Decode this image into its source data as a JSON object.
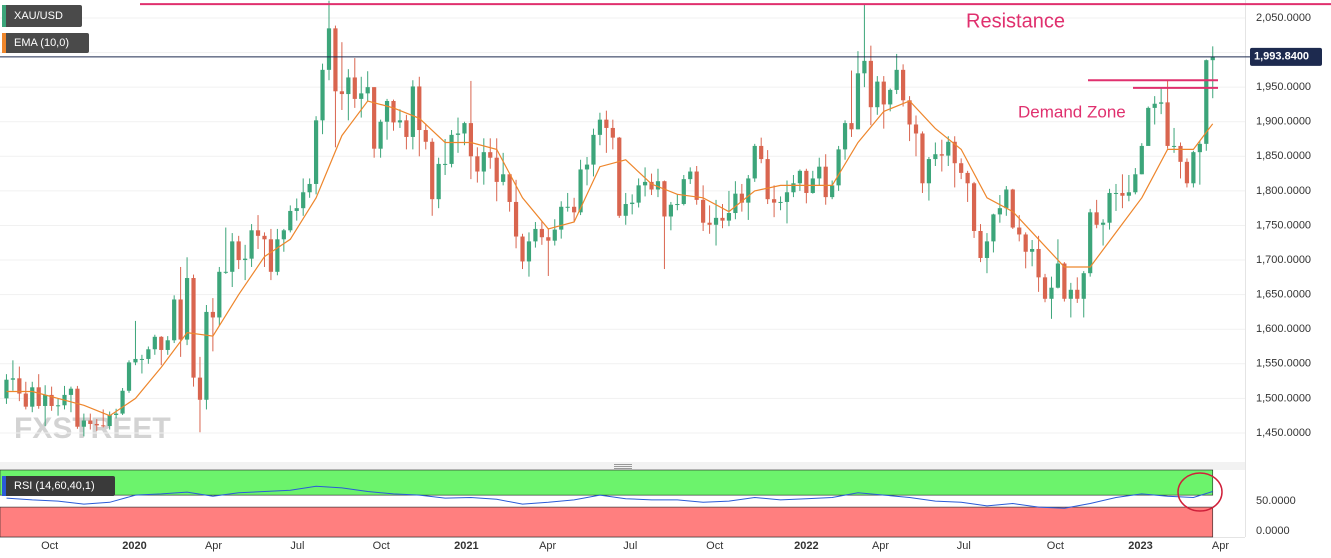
{
  "chart_data": {
    "type": "candlestick",
    "title": "XAU/USD",
    "watermark": "FXSTREET",
    "up_color": "#3ca57a",
    "down_color": "#d9654f",
    "grid": true,
    "open": [
      1500,
      1527,
      1529,
      1507,
      1488,
      1516,
      1489,
      1505,
      1489,
      1490,
      1505,
      1514,
      1459,
      1468,
      1463,
      1461,
      1460,
      1476,
      1478,
      1511,
      1552,
      1557,
      1557,
      1571,
      1589,
      1570,
      1584,
      1643,
      1585,
      1674,
      1530,
      1498,
      1625,
      1617,
      1683,
      1683,
      1727,
      1700,
      1702,
      1743,
      1735,
      1730,
      1683,
      1730,
      1743,
      1771,
      1775,
      1798,
      1810,
      1902,
      1975,
      2035,
      1944,
      1940,
      1964,
      1933,
      1941,
      1950,
      1861,
      1900,
      1930,
      1899,
      1902,
      1878,
      1951,
      1888,
      1871,
      1788,
      1839,
      1839,
      1881,
      1883,
      1898,
      1850,
      1828,
      1856,
      1848,
      1813,
      1824,
      1784,
      1734,
      1698,
      1727,
      1745,
      1733,
      1728,
      1744,
      1777,
      1777,
      1769,
      1831,
      1838,
      1881,
      1903,
      1891,
      1877,
      1764,
      1781,
      1783,
      1808,
      1813,
      1802,
      1814,
      1763,
      1780,
      1781,
      1817,
      1828,
      1787,
      1754,
      1751,
      1761,
      1757,
      1768,
      1796,
      1783,
      1818,
      1865,
      1846,
      1788,
      1783,
      1784,
      1798,
      1811,
      1829,
      1797,
      1818,
      1835,
      1791,
      1808,
      1860,
      1898,
      1889,
      1970,
      1988,
      1921,
      1958,
      1925,
      1946,
      1975,
      1931,
      1896,
      1883,
      1811,
      1846,
      1853,
      1851,
      1871,
      1840,
      1826,
      1811,
      1742,
      1703,
      1727,
      1766,
      1775,
      1802,
      1747,
      1737,
      1712,
      1716,
      1675,
      1644,
      1660,
      1695,
      1644,
      1657,
      1644,
      1681,
      1769,
      1751,
      1754,
      1797,
      1797,
      1793,
      1798,
      1824,
      1865,
      1920,
      1926,
      1928,
      1865,
      1865,
      1842,
      1811,
      1856,
      1868,
      1989
    ],
    "high": [
      1535,
      1555,
      1546,
      1524,
      1524,
      1535,
      1519,
      1517,
      1500,
      1518,
      1517,
      1518,
      1478,
      1478,
      1470,
      1484,
      1481,
      1485,
      1515,
      1555,
      1612,
      1563,
      1575,
      1592,
      1590,
      1590,
      1649,
      1690,
      1704,
      1679,
      1560,
      1635,
      1645,
      1690,
      1747,
      1739,
      1735,
      1722,
      1752,
      1765,
      1740,
      1745,
      1745,
      1745,
      1779,
      1789,
      1818,
      1818,
      1908,
      1984,
      2075,
      2039,
      2015,
      1976,
      1992,
      1965,
      1973,
      1950,
      1903,
      1933,
      1932,
      1918,
      1910,
      1960,
      1965,
      1897,
      1876,
      1848,
      1875,
      1888,
      1906,
      1900,
      1959,
      1863,
      1876,
      1876,
      1876,
      1855,
      1824,
      1816,
      1738,
      1740,
      1755,
      1756,
      1746,
      1759,
      1785,
      1797,
      1790,
      1845,
      1849,
      1890,
      1913,
      1916,
      1903,
      1878,
      1797,
      1795,
      1818,
      1834,
      1825,
      1832,
      1815,
      1784,
      1795,
      1823,
      1834,
      1836,
      1808,
      1779,
      1787,
      1781,
      1800,
      1814,
      1810,
      1823,
      1868,
      1877,
      1859,
      1808,
      1792,
      1815,
      1823,
      1831,
      1832,
      1829,
      1848,
      1853,
      1815,
      1865,
      1902,
      1974,
      2002,
      2070,
      2010,
      1966,
      1966,
      1948,
      1998,
      1983,
      1937,
      1909,
      1886,
      1849,
      1870,
      1874,
      1879,
      1879,
      1847,
      1829,
      1813,
      1752,
      1739,
      1767,
      1794,
      1807,
      1803,
      1765,
      1740,
      1729,
      1735,
      1680,
      1676,
      1730,
      1697,
      1667,
      1675,
      1684,
      1774,
      1787,
      1759,
      1803,
      1810,
      1824,
      1823,
      1833,
      1869,
      1922,
      1937,
      1949,
      1960,
      1891,
      1870,
      1847,
      1858,
      1872,
      1990,
      2009
    ],
    "low": [
      1492,
      1511,
      1496,
      1484,
      1480,
      1485,
      1460,
      1482,
      1475,
      1484,
      1480,
      1456,
      1445,
      1455,
      1453,
      1458,
      1455,
      1471,
      1476,
      1508,
      1548,
      1536,
      1550,
      1563,
      1548,
      1563,
      1580,
      1560,
      1577,
      1517,
      1451,
      1484,
      1568,
      1605,
      1680,
      1661,
      1687,
      1671,
      1690,
      1716,
      1690,
      1671,
      1678,
      1712,
      1740,
      1757,
      1764,
      1790,
      1795,
      1882,
      1960,
      1863,
      1917,
      1902,
      1920,
      1906,
      1930,
      1848,
      1848,
      1874,
      1887,
      1891,
      1860,
      1860,
      1850,
      1860,
      1764,
      1775,
      1823,
      1834,
      1855,
      1866,
      1817,
      1812,
      1809,
      1832,
      1785,
      1808,
      1770,
      1717,
      1687,
      1676,
      1718,
      1722,
      1677,
      1721,
      1731,
      1770,
      1756,
      1765,
      1808,
      1821,
      1866,
      1855,
      1860,
      1761,
      1751,
      1766,
      1776,
      1792,
      1794,
      1791,
      1687,
      1743,
      1772,
      1779,
      1810,
      1780,
      1742,
      1738,
      1721,
      1746,
      1749,
      1759,
      1770,
      1758,
      1813,
      1840,
      1781,
      1762,
      1772,
      1753,
      1791,
      1800,
      1782,
      1796,
      1808,
      1780,
      1788,
      1800,
      1845,
      1878,
      1889,
      1950,
      1895,
      1910,
      1890,
      1915,
      1940,
      1922,
      1872,
      1850,
      1797,
      1786,
      1836,
      1828,
      1836,
      1805,
      1817,
      1784,
      1732,
      1697,
      1681,
      1711,
      1754,
      1764,
      1745,
      1727,
      1688,
      1691,
      1654,
      1639,
      1615,
      1659,
      1640,
      1617,
      1638,
      1617,
      1676,
      1746,
      1721,
      1744,
      1771,
      1775,
      1785,
      1795,
      1824,
      1867,
      1896,
      1911,
      1861,
      1855,
      1818,
      1805,
      1805,
      1809,
      1858,
      1934
    ],
    "close": [
      1527,
      1529,
      1507,
      1488,
      1516,
      1489,
      1505,
      1489,
      1490,
      1505,
      1514,
      1459,
      1468,
      1463,
      1461,
      1460,
      1476,
      1478,
      1511,
      1552,
      1557,
      1557,
      1571,
      1589,
      1570,
      1584,
      1643,
      1585,
      1674,
      1530,
      1498,
      1625,
      1617,
      1683,
      1683,
      1727,
      1700,
      1702,
      1743,
      1735,
      1730,
      1683,
      1730,
      1743,
      1771,
      1775,
      1798,
      1810,
      1902,
      1975,
      2035,
      1944,
      1940,
      1964,
      1933,
      1941,
      1950,
      1861,
      1900,
      1930,
      1899,
      1902,
      1878,
      1951,
      1888,
      1871,
      1788,
      1839,
      1839,
      1881,
      1883,
      1898,
      1850,
      1828,
      1856,
      1848,
      1813,
      1824,
      1784,
      1734,
      1698,
      1727,
      1745,
      1733,
      1728,
      1744,
      1777,
      1777,
      1769,
      1831,
      1838,
      1881,
      1903,
      1891,
      1877,
      1764,
      1781,
      1783,
      1808,
      1813,
      1802,
      1814,
      1763,
      1780,
      1781,
      1817,
      1828,
      1787,
      1754,
      1751,
      1761,
      1757,
      1768,
      1796,
      1783,
      1818,
      1865,
      1846,
      1788,
      1783,
      1784,
      1798,
      1811,
      1829,
      1797,
      1818,
      1835,
      1791,
      1808,
      1860,
      1898,
      1889,
      1970,
      1988,
      1921,
      1958,
      1925,
      1946,
      1975,
      1931,
      1896,
      1883,
      1811,
      1846,
      1853,
      1851,
      1871,
      1840,
      1826,
      1811,
      1742,
      1703,
      1727,
      1766,
      1775,
      1802,
      1747,
      1737,
      1712,
      1716,
      1675,
      1644,
      1660,
      1695,
      1644,
      1657,
      1644,
      1681,
      1769,
      1751,
      1754,
      1797,
      1797,
      1793,
      1798,
      1824,
      1865,
      1920,
      1926,
      1928,
      1865,
      1865,
      1842,
      1811,
      1856,
      1868,
      1989,
      1994
    ],
    "xlim": [
      -1,
      192
    ],
    "xticks": [
      {
        "value": 6.7,
        "label": "Oct"
      },
      {
        "value": 19.85,
        "label": "2020"
      },
      {
        "value": 32.1,
        "label": "Apr"
      },
      {
        "value": 45.1,
        "label": "Jul"
      },
      {
        "value": 58.1,
        "label": "Oct"
      },
      {
        "value": 71.3,
        "label": "2021"
      },
      {
        "value": 83.9,
        "label": "Apr"
      },
      {
        "value": 96.7,
        "label": "Jul"
      },
      {
        "value": 109.8,
        "label": "Oct"
      },
      {
        "value": 124,
        "label": "2022"
      },
      {
        "value": 135.5,
        "label": "Apr"
      },
      {
        "value": 148.4,
        "label": "Jul"
      },
      {
        "value": 162.6,
        "label": "Oct"
      },
      {
        "value": 175.8,
        "label": "2023"
      },
      {
        "value": 188.2,
        "label": "Apr"
      }
    ],
    "ylim": [
      1408,
      2076
    ],
    "yticks": [
      {
        "value": 1450,
        "label": "1,450.0000"
      },
      {
        "value": 1500,
        "label": "1,500.0000"
      },
      {
        "value": 1550,
        "label": "1,550.0000"
      },
      {
        "value": 1600,
        "label": "1,600.0000"
      },
      {
        "value": 1650,
        "label": "1,650.0000"
      },
      {
        "value": 1700,
        "label": "1,700.0000"
      },
      {
        "value": 1750,
        "label": "1,750.0000"
      },
      {
        "value": 1800,
        "label": "1,800.0000"
      },
      {
        "value": 1850,
        "label": "1,850.0000"
      },
      {
        "value": 1900,
        "label": "1,900.0000"
      },
      {
        "value": 1950,
        "label": "1,950.0000"
      },
      {
        "value": 2000,
        "label": "2,000.0000"
      },
      {
        "value": 2050,
        "label": "2,050.0000"
      }
    ],
    "ema": {
      "name": "EMA (10,0)",
      "color": "#ee862c",
      "x": [
        0,
        4,
        8,
        12,
        16,
        20,
        24,
        28,
        32,
        36,
        40,
        44,
        48,
        52,
        56,
        60,
        64,
        68,
        72,
        76,
        80,
        84,
        88,
        92,
        96,
        100,
        104,
        108,
        112,
        116,
        120,
        124,
        128,
        132,
        136,
        140,
        144,
        148,
        152,
        156,
        160,
        164,
        168,
        172,
        176,
        180,
        184,
        187
      ],
      "values": [
        1510,
        1510,
        1500,
        1490,
        1475,
        1500,
        1545,
        1595,
        1590,
        1650,
        1705,
        1730,
        1790,
        1880,
        1930,
        1920,
        1905,
        1870,
        1870,
        1860,
        1790,
        1745,
        1755,
        1835,
        1845,
        1810,
        1795,
        1790,
        1770,
        1800,
        1808,
        1808,
        1808,
        1870,
        1915,
        1930,
        1890,
        1860,
        1790,
        1770,
        1730,
        1690,
        1690,
        1740,
        1790,
        1860,
        1860,
        1897
      ]
    },
    "last_price": {
      "value": 1993.84,
      "label": "1,993.8400"
    },
    "annotations": [
      {
        "text": "Resistance",
        "color": "#e0306e",
        "values": [
          2070
        ]
      },
      {
        "text": "Demand Zone",
        "color": "#e0306e",
        "values": [
          1960,
          1949
        ]
      }
    ],
    "rsi": {
      "name": "RSI (14,60,40,1)",
      "color": "#2a5bd7",
      "x": [
        0,
        4,
        8,
        12,
        16,
        20,
        24,
        28,
        32,
        36,
        40,
        44,
        48,
        52,
        56,
        60,
        64,
        68,
        72,
        76,
        80,
        84,
        88,
        92,
        96,
        100,
        104,
        108,
        112,
        116,
        120,
        124,
        128,
        132,
        136,
        140,
        144,
        148,
        152,
        156,
        160,
        164,
        168,
        172,
        176,
        180,
        184,
        187
      ],
      "values": [
        55,
        52,
        50,
        45,
        48,
        60,
        62,
        65,
        58,
        64,
        66,
        68,
        75,
        72,
        66,
        62,
        60,
        55,
        56,
        53,
        45,
        48,
        52,
        60,
        54,
        52,
        52,
        48,
        50,
        56,
        52,
        54,
        56,
        64,
        60,
        56,
        50,
        48,
        42,
        46,
        40,
        38,
        46,
        56,
        62,
        58,
        56,
        66
      ],
      "ylim": [
        -10,
        102
      ],
      "yticks": [
        {
          "value": 50,
          "label": "50.0000"
        },
        {
          "value": 0,
          "label": "0.0000"
        }
      ],
      "upper": 60,
      "lower": 40,
      "upper_color": "#6cf36c",
      "lower_color": "#ff7f7f"
    }
  }
}
